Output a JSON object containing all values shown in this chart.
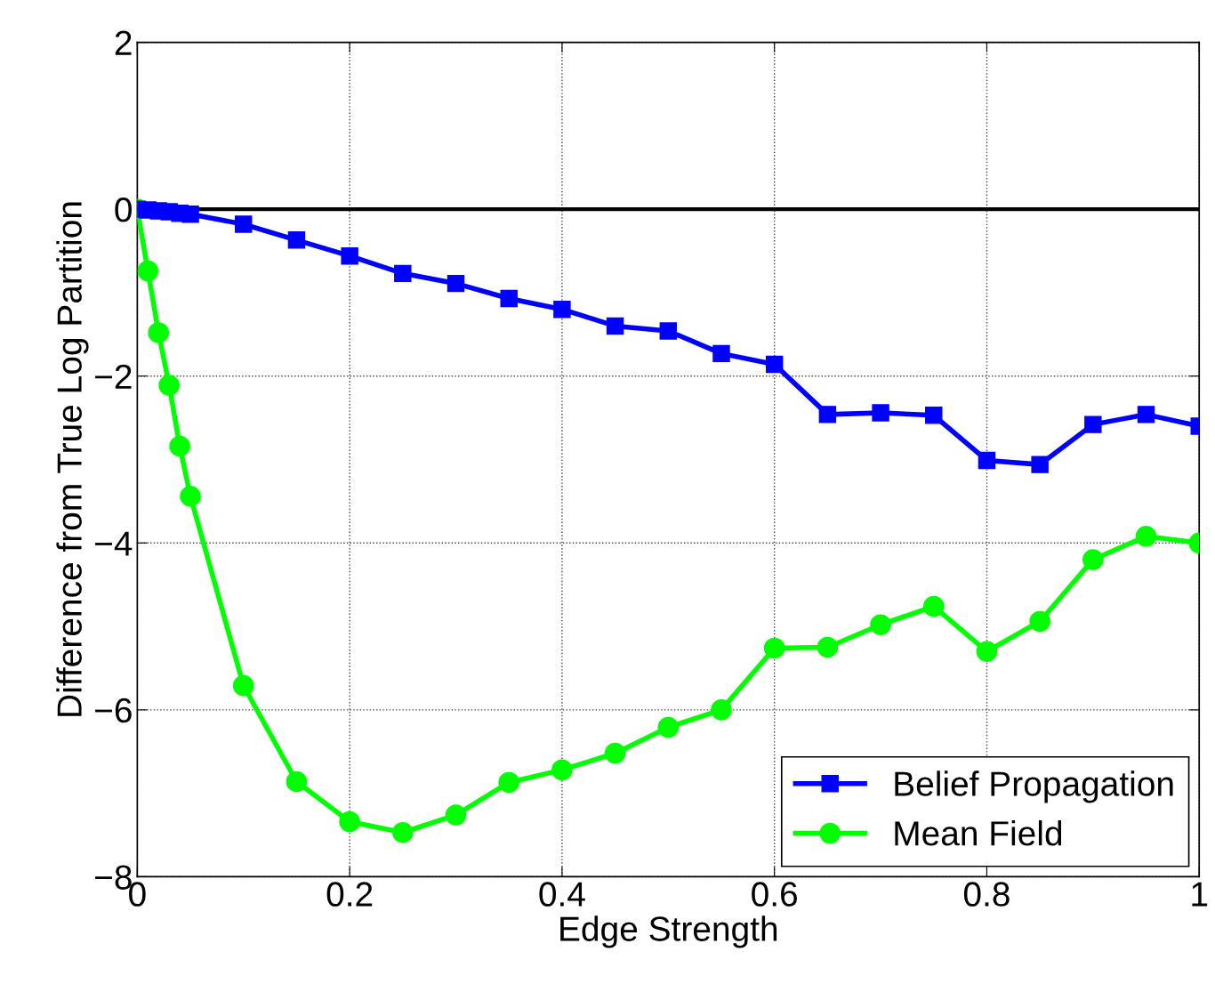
{
  "chart_data": {
    "type": "line",
    "xlabel": "Edge Strength",
    "ylabel": "Difference from True Log Partition",
    "x": [
      0,
      0.01,
      0.02,
      0.03,
      0.04,
      0.05,
      0.1,
      0.15,
      0.2,
      0.25,
      0.3,
      0.35,
      0.4,
      0.45,
      0.5,
      0.55,
      0.6,
      0.65,
      0.7,
      0.75,
      0.8,
      0.85,
      0.9,
      0.95,
      1.0
    ],
    "series": [
      {
        "name": "Belief Propagation",
        "color": "#0000ff",
        "marker": "square",
        "values": [
          0,
          -0.01,
          -0.02,
          -0.03,
          -0.05,
          -0.06,
          -0.18,
          -0.37,
          -0.56,
          -0.77,
          -0.89,
          -1.07,
          -1.2,
          -1.4,
          -1.46,
          -1.73,
          -1.86,
          -2.46,
          -2.44,
          -2.47,
          -3.01,
          -3.06,
          -2.58,
          -2.46,
          -2.6
        ]
      },
      {
        "name": "Mean Field",
        "color": "#00ff00",
        "marker": "circle",
        "values": [
          0,
          -0.74,
          -1.48,
          -2.11,
          -2.84,
          -3.44,
          -5.71,
          -6.86,
          -7.34,
          -7.47,
          -7.26,
          -6.87,
          -6.72,
          -6.52,
          -6.21,
          -6.0,
          -5.26,
          -5.25,
          -4.98,
          -4.76,
          -5.3,
          -4.94,
          -4.2,
          -3.92,
          -4.0
        ]
      }
    ],
    "xlim": [
      0,
      1
    ],
    "xticks": [
      0,
      0.2,
      0.4,
      0.6,
      0.8,
      1
    ],
    "ylim": [
      -8,
      2
    ],
    "yticks": [
      -8,
      -6,
      -4,
      -2,
      0,
      2
    ],
    "ref_lines": [
      {
        "axis": "y",
        "value": 0,
        "color": "#000000",
        "line_style": "solid"
      }
    ],
    "grid": true,
    "legend": "bottom right",
    "line_style": "solid"
  }
}
